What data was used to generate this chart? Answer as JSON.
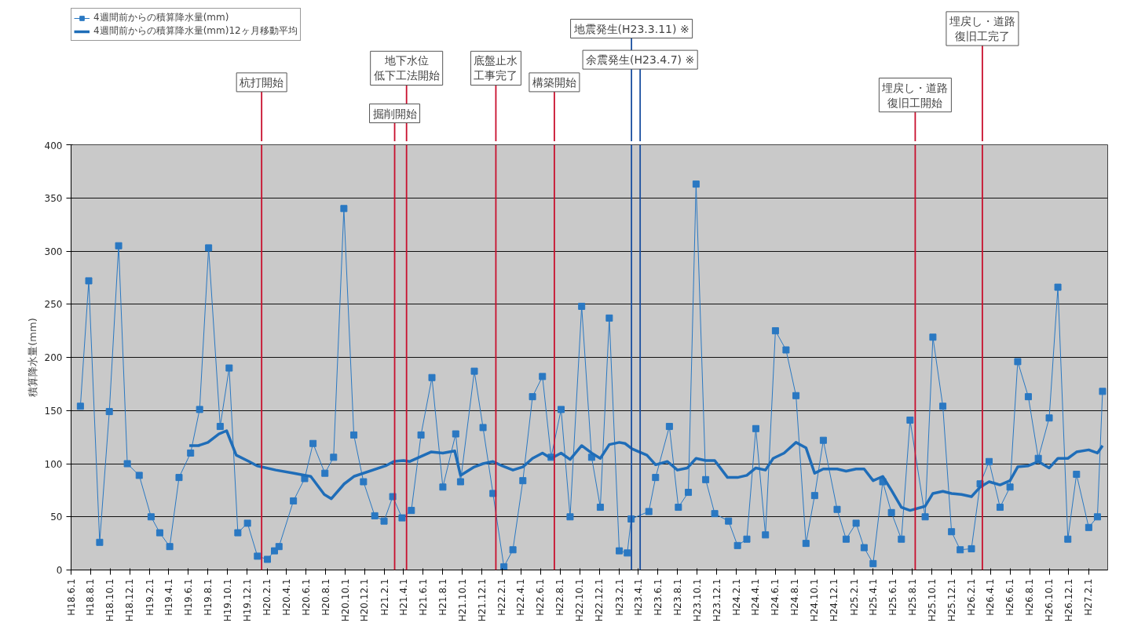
{
  "chart_data": {
    "type": "line",
    "ylabel": "積算降水量(mm)",
    "xlim": [
      "2006-06-01",
      "2015-04-01"
    ],
    "ylim": [
      0,
      400
    ],
    "yticks": [
      0,
      50,
      100,
      150,
      200,
      250,
      300,
      350,
      400
    ],
    "xticks": [
      {
        "value": "2006-06-01",
        "label": "H18.6.1"
      },
      {
        "value": "2006-08-01",
        "label": "H18.8.1"
      },
      {
        "value": "2006-10-01",
        "label": "H18.10.1"
      },
      {
        "value": "2006-12-01",
        "label": "H18.12.1"
      },
      {
        "value": "2007-02-01",
        "label": "H19.2.1"
      },
      {
        "value": "2007-04-01",
        "label": "H19.4.1"
      },
      {
        "value": "2007-06-01",
        "label": "H19.6.1"
      },
      {
        "value": "2007-08-01",
        "label": "H19.8.1"
      },
      {
        "value": "2007-10-01",
        "label": "H19.10.1"
      },
      {
        "value": "2007-12-01",
        "label": "H19.12.1"
      },
      {
        "value": "2008-02-01",
        "label": "H20.2.1"
      },
      {
        "value": "2008-04-01",
        "label": "H20.4.1"
      },
      {
        "value": "2008-06-01",
        "label": "H20.6.1"
      },
      {
        "value": "2008-08-01",
        "label": "H20.8.1"
      },
      {
        "value": "2008-10-01",
        "label": "H20.10.1"
      },
      {
        "value": "2008-12-01",
        "label": "H20.12.1"
      },
      {
        "value": "2009-02-01",
        "label": "H21.2.1"
      },
      {
        "value": "2009-04-01",
        "label": "H21.4.1"
      },
      {
        "value": "2009-06-01",
        "label": "H21.6.1"
      },
      {
        "value": "2009-08-01",
        "label": "H21.8.1"
      },
      {
        "value": "2009-10-01",
        "label": "H21.10.1"
      },
      {
        "value": "2009-12-01",
        "label": "H21.12.1"
      },
      {
        "value": "2010-02-01",
        "label": "H22.2.1"
      },
      {
        "value": "2010-04-01",
        "label": "H22.4.1"
      },
      {
        "value": "2010-06-01",
        "label": "H22.6.1"
      },
      {
        "value": "2010-08-01",
        "label": "H22.8.1"
      },
      {
        "value": "2010-10-01",
        "label": "H22.10.1"
      },
      {
        "value": "2010-12-01",
        "label": "H22.12.1"
      },
      {
        "value": "2011-02-01",
        "label": "H23.2.1"
      },
      {
        "value": "2011-04-01",
        "label": "H23.4.1"
      },
      {
        "value": "2011-06-01",
        "label": "H23.6.1"
      },
      {
        "value": "2011-08-01",
        "label": "H23.8.1"
      },
      {
        "value": "2011-10-01",
        "label": "H23.10.1"
      },
      {
        "value": "2011-12-01",
        "label": "H23.12.1"
      },
      {
        "value": "2012-02-01",
        "label": "H24.2.1"
      },
      {
        "value": "2012-04-01",
        "label": "H24.4.1"
      },
      {
        "value": "2012-06-01",
        "label": "H24.6.1"
      },
      {
        "value": "2012-08-01",
        "label": "H24.8.1"
      },
      {
        "value": "2012-10-01",
        "label": "H24.10.1"
      },
      {
        "value": "2012-12-01",
        "label": "H24.12.1"
      },
      {
        "value": "2013-02-01",
        "label": "H25.2.1"
      },
      {
        "value": "2013-04-01",
        "label": "H25.4.1"
      },
      {
        "value": "2013-06-01",
        "label": "H25.6.1"
      },
      {
        "value": "2013-08-01",
        "label": "H25.8.1"
      },
      {
        "value": "2013-10-01",
        "label": "H25.10.1"
      },
      {
        "value": "2013-12-01",
        "label": "H25.12.1"
      },
      {
        "value": "2014-02-01",
        "label": "H26.2.1"
      },
      {
        "value": "2014-04-01",
        "label": "H26.4.1"
      },
      {
        "value": "2014-06-01",
        "label": "H26.6.1"
      },
      {
        "value": "2014-08-01",
        "label": "H26.8.1"
      },
      {
        "value": "2014-10-01",
        "label": "H26.10.1"
      },
      {
        "value": "2014-12-01",
        "label": "H26.12.1"
      },
      {
        "value": "2015-02-01",
        "label": "H27.2.1"
      }
    ],
    "grid": "y",
    "legend": "top left",
    "series": [
      {
        "name": "4週間前からの積算降水量(mm)",
        "color": "#2a78c2",
        "marker": "square",
        "x": [
          "2006-06-30",
          "2006-07-26",
          "2006-08-29",
          "2006-09-28",
          "2006-10-27",
          "2006-11-23",
          "2006-12-30",
          "2007-02-05",
          "2007-03-04",
          "2007-04-04",
          "2007-05-03",
          "2007-06-08",
          "2007-07-06",
          "2007-08-03",
          "2007-09-08",
          "2007-10-06",
          "2007-11-02",
          "2007-12-02",
          "2008-01-02",
          "2008-02-02",
          "2008-02-24",
          "2008-03-09",
          "2008-04-23",
          "2008-05-28",
          "2008-06-23",
          "2008-07-30",
          "2008-08-26",
          "2008-09-27",
          "2008-10-28",
          "2008-11-27",
          "2009-01-01",
          "2009-01-30",
          "2009-02-26",
          "2009-03-27",
          "2009-04-25",
          "2009-05-25",
          "2009-06-28",
          "2009-08-01",
          "2009-09-10",
          "2009-09-25",
          "2009-11-07",
          "2009-12-04",
          "2010-01-04",
          "2010-02-07",
          "2010-03-07",
          "2010-04-07",
          "2010-05-07",
          "2010-06-07",
          "2010-07-04",
          "2010-08-04",
          "2010-09-01",
          "2010-10-07",
          "2010-11-07",
          "2010-12-04",
          "2011-01-01",
          "2011-02-01",
          "2011-02-26",
          "2011-03-10",
          "2011-05-04",
          "2011-05-25",
          "2011-07-07",
          "2011-08-04",
          "2011-09-04",
          "2011-09-28",
          "2011-10-28",
          "2011-11-25",
          "2012-01-07",
          "2012-02-04",
          "2012-03-04",
          "2012-04-01",
          "2012-05-01",
          "2012-06-01",
          "2012-07-04",
          "2012-08-04",
          "2012-09-04",
          "2012-10-01",
          "2012-10-28",
          "2012-12-10",
          "2013-01-07",
          "2013-02-07",
          "2013-03-04",
          "2013-04-01",
          "2013-05-01",
          "2013-05-28",
          "2013-06-28",
          "2013-07-25",
          "2013-09-10",
          "2013-10-04",
          "2013-11-04",
          "2013-12-01",
          "2013-12-28",
          "2014-02-01",
          "2014-02-28",
          "2014-03-28",
          "2014-05-01",
          "2014-06-01",
          "2014-06-25",
          "2014-07-28",
          "2014-08-28",
          "2014-10-01",
          "2014-10-28",
          "2014-11-28",
          "2014-12-25",
          "2015-02-01",
          "2015-02-28",
          "2015-03-16"
        ],
        "values": [
          154,
          272,
          26,
          149,
          305,
          100,
          89,
          50,
          35,
          22,
          87,
          110,
          151,
          303,
          135,
          190,
          35,
          44,
          13,
          10,
          18,
          22,
          65,
          86,
          119,
          91,
          106,
          340,
          127,
          83,
          51,
          46,
          69,
          49,
          56,
          127,
          181,
          78,
          128,
          83,
          187,
          134,
          72,
          3,
          19,
          84,
          163,
          182,
          106,
          151,
          50,
          248,
          106,
          59,
          237,
          18,
          16,
          48,
          55,
          87,
          135,
          59,
          73,
          363,
          85,
          53,
          46,
          23,
          29,
          133,
          33,
          225,
          207,
          164,
          25,
          70,
          122,
          57,
          29,
          44,
          21,
          6,
          83,
          54,
          29,
          141,
          50,
          219,
          154,
          36,
          19,
          20,
          81,
          102,
          59,
          78,
          196,
          163,
          105,
          143,
          266,
          29,
          90,
          40,
          50,
          168
        ]
      },
      {
        "name": "4週間前からの積算降水量(mm)12ヶ月移動平均",
        "color": "#1f6db8",
        "marker": "none",
        "x": [
          "2007-06-04",
          "2007-07-02",
          "2007-08-01",
          "2007-09-04",
          "2007-09-28",
          "2007-10-28",
          "2007-12-07",
          "2008-01-01",
          "2008-02-28",
          "2008-04-25",
          "2008-06-16",
          "2008-07-28",
          "2008-08-19",
          "2008-09-28",
          "2008-10-28",
          "2009-02-04",
          "2009-03-01",
          "2009-04-01",
          "2009-04-19",
          "2009-06-25",
          "2009-08-01",
          "2009-09-07",
          "2009-09-25",
          "2009-11-07",
          "2009-12-04",
          "2010-01-04",
          "2010-02-01",
          "2010-03-07",
          "2010-04-07",
          "2010-05-07",
          "2010-06-07",
          "2010-07-04",
          "2010-08-04",
          "2010-09-01",
          "2010-10-07",
          "2010-11-07",
          "2010-12-04",
          "2011-01-01",
          "2011-02-01",
          "2011-02-19",
          "2011-03-13",
          "2011-04-28",
          "2011-05-25",
          "2011-07-01",
          "2011-08-01",
          "2011-09-01",
          "2011-09-28",
          "2011-10-28",
          "2011-11-25",
          "2012-01-04",
          "2012-02-04",
          "2012-03-04",
          "2012-04-01",
          "2012-05-01",
          "2012-05-25",
          "2012-06-28",
          "2012-08-04",
          "2012-09-04",
          "2012-10-01",
          "2012-10-28",
          "2012-12-10",
          "2013-01-07",
          "2013-02-07",
          "2013-03-04",
          "2013-04-01",
          "2013-05-01",
          "2013-05-28",
          "2013-06-28",
          "2013-07-25",
          "2013-09-10",
          "2013-10-04",
          "2013-11-04",
          "2013-12-01",
          "2014-01-01",
          "2014-02-01",
          "2014-02-28",
          "2014-03-28",
          "2014-05-01",
          "2014-06-01",
          "2014-06-25",
          "2014-07-28",
          "2014-08-28",
          "2014-10-01",
          "2014-10-28",
          "2014-11-28",
          "2014-12-25",
          "2015-02-01",
          "2015-02-28",
          "2015-03-16"
        ],
        "values": [
          117,
          117,
          120,
          128,
          131,
          108,
          102,
          98,
          94,
          91,
          88,
          71,
          67,
          81,
          88,
          98,
          102,
          103,
          102,
          111,
          110,
          112,
          89,
          97,
          100,
          102,
          98,
          94,
          97,
          105,
          110,
          105,
          110,
          104,
          117,
          110,
          105,
          118,
          120,
          119,
          114,
          108,
          99,
          102,
          94,
          96,
          105,
          103,
          103,
          87,
          87,
          89,
          96,
          94,
          105,
          110,
          120,
          115,
          91,
          95,
          95,
          93,
          95,
          95,
          84,
          88,
          75,
          59,
          56,
          60,
          72,
          74,
          72,
          71,
          69,
          78,
          83,
          80,
          84,
          97,
          98,
          102,
          96,
          105,
          105,
          111,
          113,
          110,
          117
        ]
      }
    ],
    "ref_lines": [
      {
        "axis": "x",
        "value": "2008-01-15",
        "label": "杭打開始",
        "color": "#c8102e"
      },
      {
        "axis": "x",
        "value": "2009-03-04",
        "label": "掘削開始",
        "color": "#c8102e"
      },
      {
        "axis": "x",
        "value": "2009-04-10",
        "label": "地下水位低下工法開始",
        "color": "#c8102e"
      },
      {
        "axis": "x",
        "value": "2010-01-13",
        "label": "底盤止水工事完了",
        "color": "#c8102e"
      },
      {
        "axis": "x",
        "value": "2010-07-14",
        "label": "構築開始",
        "color": "#c8102e"
      },
      {
        "axis": "x",
        "value": "2011-03-11",
        "label": "地震発生(H23.3.11) ※",
        "color": "#1a4fa0"
      },
      {
        "axis": "x",
        "value": "2011-04-07",
        "label": "余震発生(H23.4.7) ※",
        "color": "#1a4fa0"
      },
      {
        "axis": "x",
        "value": "2013-08-10",
        "label": "埋戻し・道路復旧工開始",
        "color": "#c8102e"
      },
      {
        "axis": "x",
        "value": "2014-03-07",
        "label": "埋戻し・道路復旧工完了",
        "color": "#c8102e"
      }
    ]
  }
}
